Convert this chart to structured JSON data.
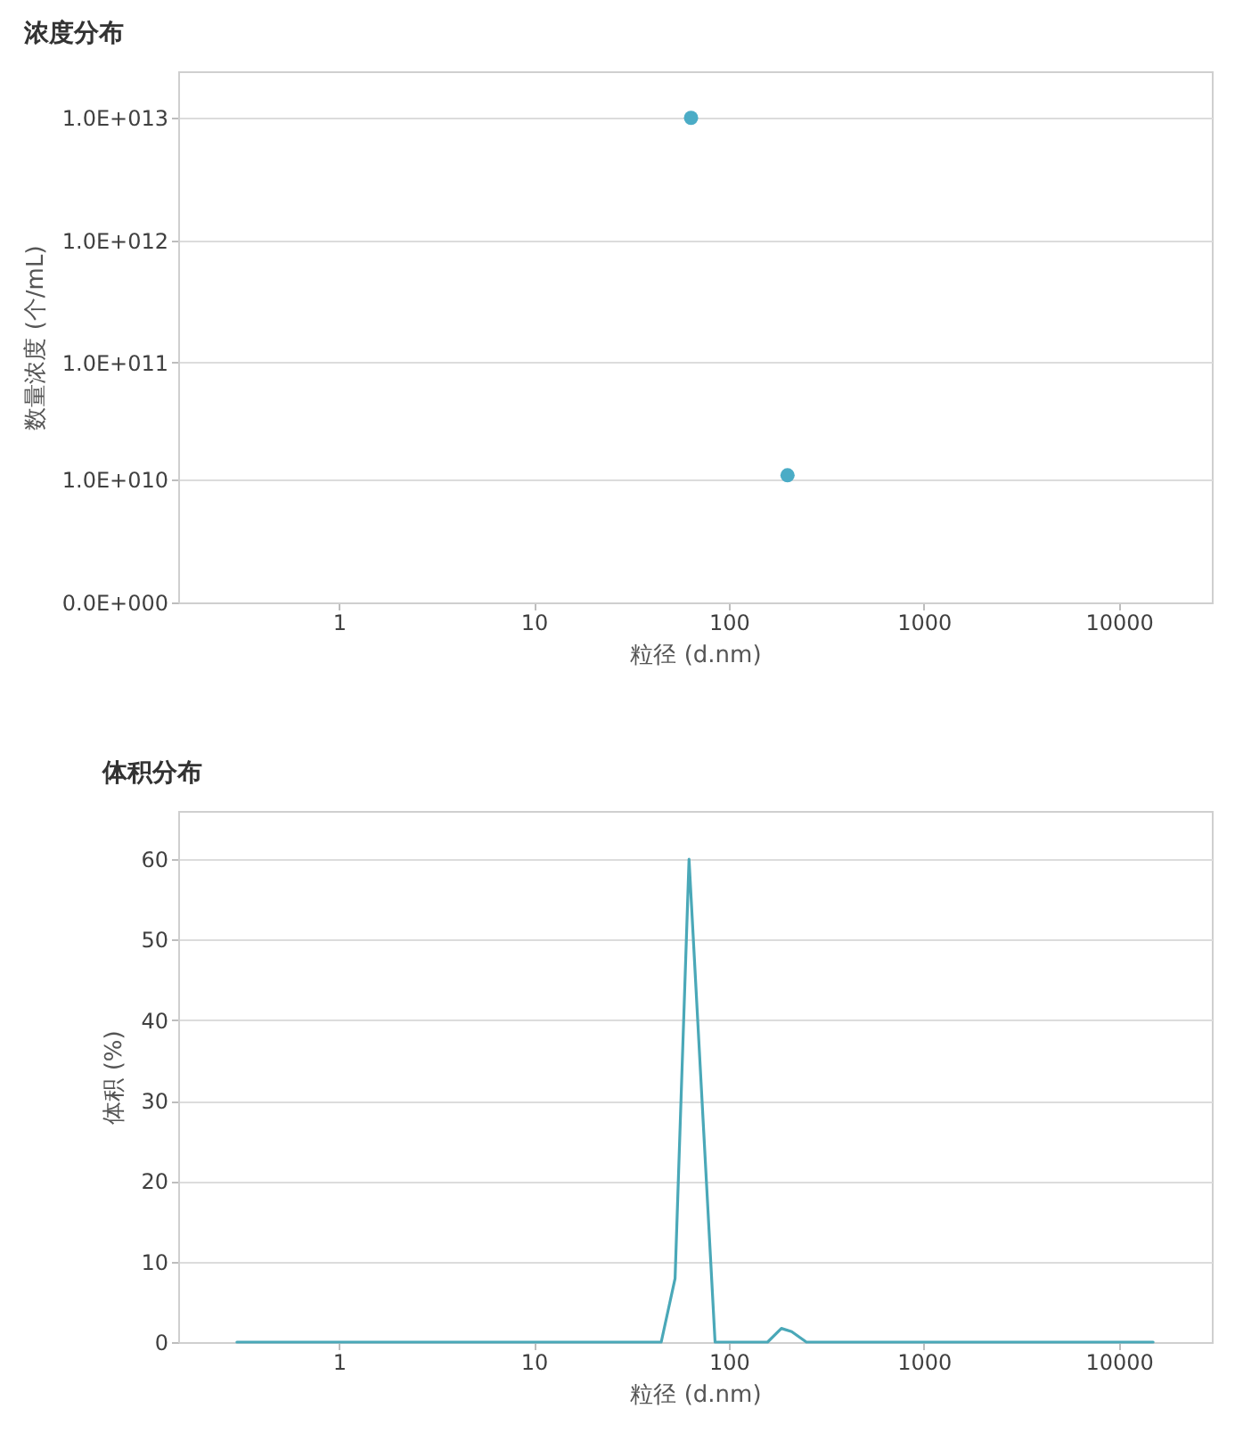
{
  "chart_data": [
    {
      "type": "scatter",
      "title": "浓度分布",
      "xlabel": "粒径 (d.nm)",
      "ylabel": "数量浓度 (个/mL)",
      "log": "xy",
      "grid": "y",
      "marker": "circle",
      "series": [
        {
          "color": "#4bacc6",
          "x": [
            64,
            200
          ],
          "values": [
            10000000000000.0,
            11000000000.0
          ]
        }
      ],
      "xlim": [
        0.15,
        30000
      ],
      "xticks": [
        1,
        10,
        100,
        1000,
        10000
      ],
      "ylim": [
        0,
        24000000000000.0
      ],
      "yticks": [
        {
          "value": 0,
          "label": "0.0E+000"
        },
        {
          "value": 10000000000.0,
          "label": "1.0E+010"
        },
        {
          "value": 100000000000.0,
          "label": "1.0E+011"
        },
        {
          "value": 1000000000000.0,
          "label": "1.0E+012"
        },
        {
          "value": 10000000000000.0,
          "label": "1.0E+013"
        }
      ]
    },
    {
      "type": "line",
      "title": "体积分布",
      "xlabel": "粒径 (d.nm)",
      "ylabel": "体积 (%)",
      "log": "x",
      "grid": "y",
      "line_style": "solid",
      "series": [
        {
          "color": "#4aa8b8",
          "x": [
            0.3,
            45,
            53,
            62.5,
            85,
            158,
            186,
            210,
            250,
            15000
          ],
          "values": [
            0,
            0,
            7.9,
            60,
            0,
            0,
            1.7,
            1.3,
            0,
            0
          ]
        }
      ],
      "xlim": [
        0.15,
        30000
      ],
      "xticks": [
        1,
        10,
        100,
        1000,
        10000
      ],
      "ylim": [
        0,
        66
      ],
      "yticks": [
        0,
        10,
        20,
        30,
        40,
        50,
        60
      ]
    }
  ]
}
